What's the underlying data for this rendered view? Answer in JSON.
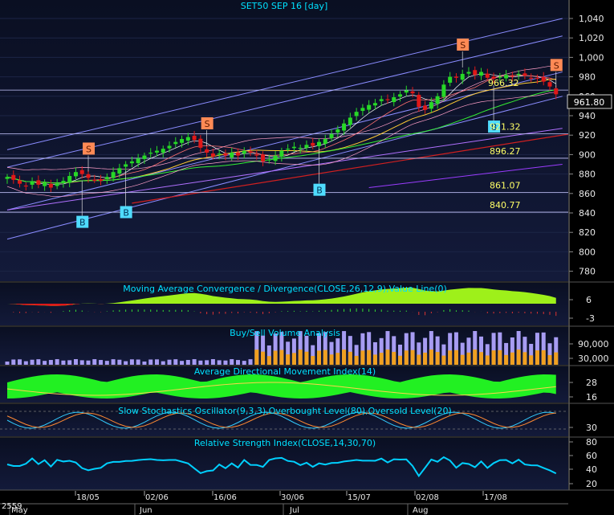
{
  "chart_data": {
    "type": "candlestick",
    "title": "SET50 SEP 16   [day]",
    "price_axis": {
      "ticks": [
        "1,040",
        "1,020",
        "1,000",
        "980",
        "960",
        "940",
        "920",
        "900",
        "880",
        "860",
        "840",
        "820",
        "800",
        "780"
      ],
      "ylim": [
        770,
        1045
      ]
    },
    "last_price": "961.80",
    "hlines": [
      {
        "label": "966.32",
        "value": 966.32
      },
      {
        "label": "921.32",
        "value": 921.32
      },
      {
        "label": "896.27",
        "value": 896.27
      },
      {
        "label": "861.07",
        "value": 861.07
      },
      {
        "label": "840.77",
        "value": 840.77
      }
    ],
    "signals": [
      {
        "type": "B",
        "bar": 12
      },
      {
        "type": "B",
        "bar": 19
      },
      {
        "type": "S",
        "bar": 13
      },
      {
        "type": "S",
        "bar": 32
      },
      {
        "type": "B",
        "bar": 50
      },
      {
        "type": "S",
        "bar": 73
      },
      {
        "type": "B",
        "bar": 78
      },
      {
        "type": "S",
        "bar": 88
      }
    ],
    "closes": [
      877,
      874,
      870,
      868,
      872,
      869,
      871,
      866,
      870,
      873,
      878,
      882,
      880,
      876,
      874,
      873,
      877,
      882,
      886,
      890,
      893,
      896,
      899,
      902,
      904,
      906,
      909,
      913,
      916,
      918,
      915,
      907,
      902,
      898,
      901,
      899,
      902,
      899,
      904,
      902,
      899,
      893,
      895,
      899,
      904,
      906,
      908,
      907,
      910,
      909,
      913,
      916,
      921,
      926,
      932,
      938,
      944,
      948,
      951,
      953,
      957,
      956,
      959,
      962,
      966,
      963,
      949,
      946,
      954,
      960,
      972,
      980,
      979,
      983,
      985,
      982,
      985,
      979,
      978,
      980,
      982,
      980,
      983,
      981,
      979,
      978,
      975,
      970,
      962
    ],
    "x_labels": [
      "18/05",
      "02/06",
      "16/06",
      "30/06",
      "15/07",
      "02/08",
      "17/08"
    ],
    "year_label": "2559",
    "month_labels": [
      "May",
      "Jun",
      "Jul",
      "Aug"
    ],
    "panels": {
      "macd": {
        "title": "Moving Average Convergence / Divergence(CLOSE,26,12,9),Value Line(0)",
        "ticks": [
          "6",
          "-3"
        ]
      },
      "volume": {
        "title": "Buy/Sell Volume Analysis",
        "ticks": [
          "90,000",
          "30,000"
        ]
      },
      "adx": {
        "title": "Average Directional Movement Index(14)",
        "ticks": [
          "28",
          "16"
        ]
      },
      "stoch": {
        "title": "Slow Stochastics Oscillator(9,3,3),Overbought Level(80),Oversold Level(20)",
        "ticks": [
          "30"
        ]
      },
      "rsi": {
        "title": "Relative Strength Index(CLOSE,14,30,70)",
        "ticks": [
          "80",
          "60",
          "40",
          "20"
        ]
      }
    },
    "colors": {
      "background": "#000000",
      "plot_bg": "#0c1228",
      "up": "#27d827",
      "down": "#e01818",
      "title": "#00e0ff",
      "axis_text": "#e8e8e8",
      "hline_label": "#ffff66",
      "buy": "#4fdcff",
      "sell": "#ff8a55"
    }
  }
}
